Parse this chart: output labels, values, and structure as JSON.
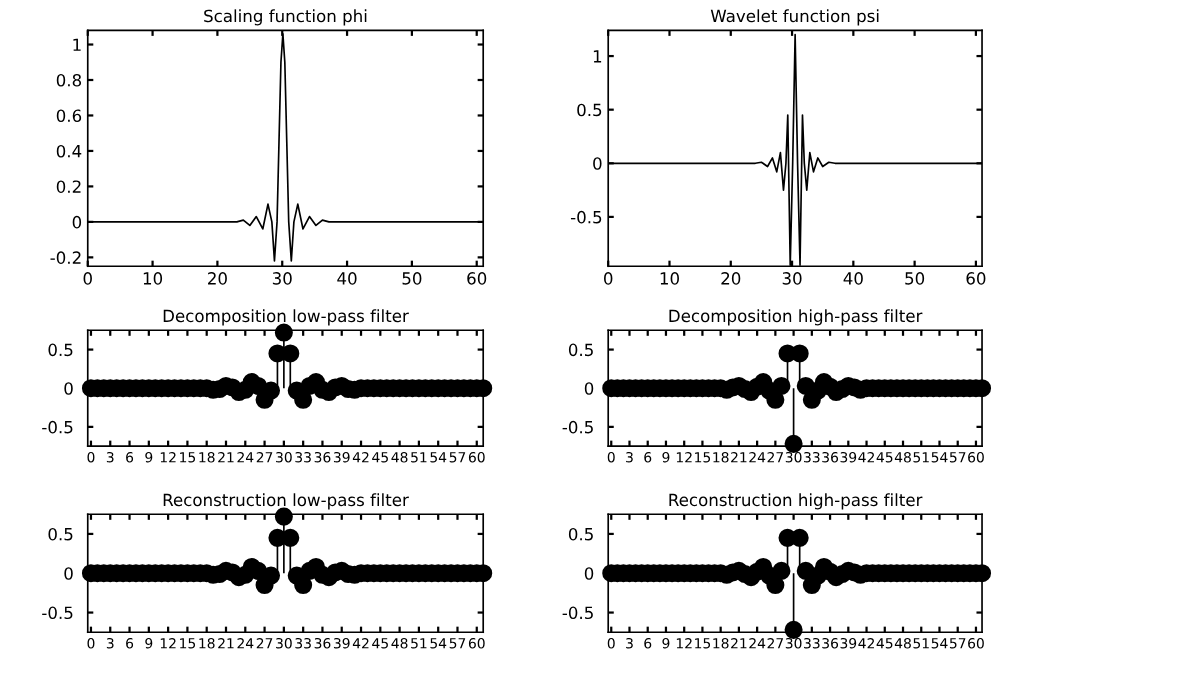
{
  "chart_data": [
    {
      "type": "line",
      "title": "Scaling function phi",
      "color": "#000000",
      "marker": "none",
      "grid": false,
      "xlim": [
        0,
        61
      ],
      "ylim": [
        -0.25,
        1.08
      ],
      "xticks": [
        0,
        10,
        20,
        30,
        40,
        50,
        60
      ],
      "yticks": [
        -0.2,
        0,
        0.2,
        0.4,
        0.6,
        0.8,
        1
      ],
      "x": [
        0,
        23,
        24,
        25,
        26,
        27,
        27.8,
        28.4,
        28.8,
        29.2,
        29.5,
        29.8,
        30.1,
        30.4,
        30.7,
        31.0,
        31.4,
        31.8,
        32.4,
        33.2,
        34.2,
        35.2,
        36.2,
        37.2,
        61
      ],
      "values": [
        0,
        0,
        0.01,
        -0.02,
        0.03,
        -0.04,
        0.1,
        0,
        -0.22,
        0,
        0.45,
        0.9,
        1.06,
        0.9,
        0.45,
        0,
        -0.22,
        0,
        0.1,
        -0.04,
        0.03,
        -0.02,
        0.01,
        0,
        0
      ]
    },
    {
      "type": "line",
      "title": "Wavelet function psi",
      "color": "#000000",
      "marker": "none",
      "grid": false,
      "xlim": [
        0,
        61
      ],
      "ylim": [
        -0.96,
        1.24
      ],
      "xticks": [
        0,
        10,
        20,
        30,
        40,
        50,
        60
      ],
      "yticks": [
        -0.5,
        0,
        0.5,
        1
      ],
      "x": [
        0,
        24,
        25,
        26,
        26.8,
        27.5,
        28.1,
        28.6,
        29.0,
        29.3,
        29.7,
        30.1,
        30.5,
        30.9,
        31.3,
        31.7,
        32.0,
        32.4,
        32.9,
        33.5,
        34.2,
        35,
        36,
        37,
        61
      ],
      "values": [
        0,
        0,
        0.01,
        -0.03,
        0.05,
        -0.08,
        0.1,
        -0.25,
        0,
        0.45,
        -0.95,
        0,
        1.2,
        0,
        -0.95,
        0.45,
        0,
        -0.25,
        0.1,
        -0.08,
        0.05,
        -0.03,
        0.01,
        0,
        0
      ]
    },
    {
      "type": "lollipop",
      "title": "Decomposition low-pass filter",
      "color": "#000000",
      "marker": "circle",
      "grid": false,
      "xlim": [
        -0.5,
        61
      ],
      "ylim": [
        -0.75,
        0.75
      ],
      "xticks": [
        0,
        3,
        6,
        9,
        12,
        15,
        18,
        21,
        24,
        27,
        30,
        33,
        36,
        39,
        42,
        45,
        48,
        51,
        54,
        57,
        60
      ],
      "yticks": [
        -0.5,
        0,
        0.5
      ],
      "x": [
        0,
        1,
        2,
        3,
        4,
        5,
        6,
        7,
        8,
        9,
        10,
        11,
        12,
        13,
        14,
        15,
        16,
        17,
        18,
        19,
        20,
        21,
        22,
        23,
        24,
        25,
        26,
        27,
        28,
        29,
        30,
        31,
        32,
        33,
        34,
        35,
        36,
        37,
        38,
        39,
        40,
        41,
        42,
        43,
        44,
        45,
        46,
        47,
        48,
        49,
        50,
        51,
        52,
        53,
        54,
        55,
        56,
        57,
        58,
        59,
        60,
        61
      ],
      "values": [
        0,
        0,
        0,
        0,
        0,
        0,
        0,
        0,
        0,
        0,
        0,
        0,
        0,
        0,
        0,
        0,
        0,
        0,
        0,
        -0.02,
        -0.01,
        0.03,
        0.01,
        -0.05,
        -0.02,
        0.08,
        0.03,
        -0.15,
        -0.03,
        0.45,
        0.72,
        0.45,
        -0.03,
        -0.15,
        0.03,
        0.08,
        -0.02,
        -0.05,
        0.01,
        0.03,
        -0.01,
        -0.02,
        0,
        0,
        0,
        0,
        0,
        0,
        0,
        0,
        0,
        0,
        0,
        0,
        0,
        0,
        0,
        0,
        0,
        0,
        0,
        0
      ]
    },
    {
      "type": "lollipop",
      "title": "Decomposition high-pass filter",
      "color": "#000000",
      "marker": "circle",
      "grid": false,
      "xlim": [
        -0.5,
        61
      ],
      "ylim": [
        -0.75,
        0.75
      ],
      "xticks": [
        0,
        3,
        6,
        9,
        12,
        15,
        18,
        21,
        24,
        27,
        30,
        33,
        36,
        39,
        42,
        45,
        48,
        51,
        54,
        57,
        60
      ],
      "yticks": [
        -0.5,
        0,
        0.5
      ],
      "x": [
        0,
        1,
        2,
        3,
        4,
        5,
        6,
        7,
        8,
        9,
        10,
        11,
        12,
        13,
        14,
        15,
        16,
        17,
        18,
        19,
        20,
        21,
        22,
        23,
        24,
        25,
        26,
        27,
        28,
        29,
        30,
        31,
        32,
        33,
        34,
        35,
        36,
        37,
        38,
        39,
        40,
        41,
        42,
        43,
        44,
        45,
        46,
        47,
        48,
        49,
        50,
        51,
        52,
        53,
        54,
        55,
        56,
        57,
        58,
        59,
        60,
        61
      ],
      "values": [
        0,
        0,
        0,
        0,
        0,
        0,
        0,
        0,
        0,
        0,
        0,
        0,
        0,
        0,
        0,
        0,
        0,
        0,
        0,
        -0.02,
        0.01,
        0.03,
        -0.01,
        -0.05,
        0.02,
        0.08,
        -0.03,
        -0.15,
        0.03,
        0.45,
        -0.72,
        0.45,
        0.03,
        -0.15,
        -0.03,
        0.08,
        0.02,
        -0.05,
        -0.01,
        0.03,
        0.01,
        -0.02,
        0,
        0,
        0,
        0,
        0,
        0,
        0,
        0,
        0,
        0,
        0,
        0,
        0,
        0,
        0,
        0,
        0,
        0,
        0,
        0
      ]
    },
    {
      "type": "lollipop",
      "title": "Reconstruction low-pass filter",
      "color": "#000000",
      "marker": "circle",
      "grid": false,
      "xlim": [
        -0.5,
        61
      ],
      "ylim": [
        -0.75,
        0.75
      ],
      "xticks": [
        0,
        3,
        6,
        9,
        12,
        15,
        18,
        21,
        24,
        27,
        30,
        33,
        36,
        39,
        42,
        45,
        48,
        51,
        54,
        57,
        60
      ],
      "yticks": [
        -0.5,
        0,
        0.5
      ],
      "x": [
        0,
        1,
        2,
        3,
        4,
        5,
        6,
        7,
        8,
        9,
        10,
        11,
        12,
        13,
        14,
        15,
        16,
        17,
        18,
        19,
        20,
        21,
        22,
        23,
        24,
        25,
        26,
        27,
        28,
        29,
        30,
        31,
        32,
        33,
        34,
        35,
        36,
        37,
        38,
        39,
        40,
        41,
        42,
        43,
        44,
        45,
        46,
        47,
        48,
        49,
        50,
        51,
        52,
        53,
        54,
        55,
        56,
        57,
        58,
        59,
        60,
        61
      ],
      "values": [
        0,
        0,
        0,
        0,
        0,
        0,
        0,
        0,
        0,
        0,
        0,
        0,
        0,
        0,
        0,
        0,
        0,
        0,
        0,
        -0.02,
        -0.01,
        0.03,
        0.01,
        -0.05,
        -0.02,
        0.08,
        0.03,
        -0.15,
        -0.03,
        0.45,
        0.72,
        0.45,
        -0.03,
        -0.15,
        0.03,
        0.08,
        -0.02,
        -0.05,
        0.01,
        0.03,
        -0.01,
        -0.02,
        0,
        0,
        0,
        0,
        0,
        0,
        0,
        0,
        0,
        0,
        0,
        0,
        0,
        0,
        0,
        0,
        0,
        0,
        0,
        0
      ]
    },
    {
      "type": "lollipop",
      "title": "Reconstruction high-pass filter",
      "color": "#000000",
      "marker": "circle",
      "grid": false,
      "xlim": [
        -0.5,
        61
      ],
      "ylim": [
        -0.75,
        0.75
      ],
      "xticks": [
        0,
        3,
        6,
        9,
        12,
        15,
        18,
        21,
        24,
        27,
        30,
        33,
        36,
        39,
        42,
        45,
        48,
        51,
        54,
        57,
        60
      ],
      "yticks": [
        -0.5,
        0,
        0.5
      ],
      "x": [
        0,
        1,
        2,
        3,
        4,
        5,
        6,
        7,
        8,
        9,
        10,
        11,
        12,
        13,
        14,
        15,
        16,
        17,
        18,
        19,
        20,
        21,
        22,
        23,
        24,
        25,
        26,
        27,
        28,
        29,
        30,
        31,
        32,
        33,
        34,
        35,
        36,
        37,
        38,
        39,
        40,
        41,
        42,
        43,
        44,
        45,
        46,
        47,
        48,
        49,
        50,
        51,
        52,
        53,
        54,
        55,
        56,
        57,
        58,
        59,
        60,
        61
      ],
      "values": [
        0,
        0,
        0,
        0,
        0,
        0,
        0,
        0,
        0,
        0,
        0,
        0,
        0,
        0,
        0,
        0,
        0,
        0,
        0,
        -0.02,
        0.01,
        0.03,
        -0.01,
        -0.05,
        0.02,
        0.08,
        -0.03,
        -0.15,
        0.03,
        0.45,
        -0.72,
        0.45,
        0.03,
        -0.15,
        -0.03,
        0.08,
        0.02,
        -0.05,
        -0.01,
        0.03,
        0.01,
        -0.02,
        0,
        0,
        0,
        0,
        0,
        0,
        0,
        0,
        0,
        0,
        0,
        0,
        0,
        0,
        0,
        0,
        0,
        0,
        0,
        0
      ]
    }
  ]
}
